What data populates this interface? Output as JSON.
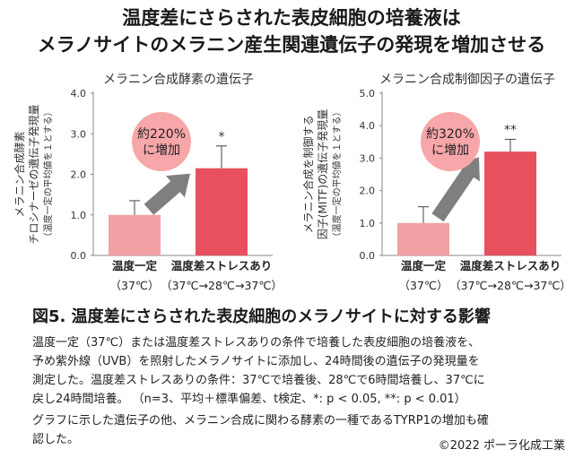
{
  "header": {
    "title_line1": "温度差にさらされた表皮細胞の培養液は",
    "title_line2": "メラノサイトのメラニン産生関連遺伝子の発現を増加させる"
  },
  "chart_data": [
    {
      "type": "bar",
      "title": "メラニン合成酵素の遺伝子",
      "ylabel_lines": [
        "メラニン合成酵素",
        "チロシナーゼの遺伝子発現量",
        "（温度一定の平均値を１とする）"
      ],
      "categories": [
        "温度一定",
        "温度差ストレスあり"
      ],
      "category_sublabels": [
        "（37℃）",
        "（37℃→28℃→37℃）"
      ],
      "values": [
        1.0,
        2.15
      ],
      "errors": [
        0.35,
        0.55
      ],
      "colors": [
        "#f4a1a5",
        "#e8505d"
      ],
      "ylim": [
        0,
        4
      ],
      "yticks": [
        "0.0",
        "1.0",
        "2.0",
        "3.0",
        "4.0"
      ],
      "significance": "*",
      "annotation": [
        "約220%",
        "に増加"
      ]
    },
    {
      "type": "bar",
      "title": "メラニン合成制御因子の遺伝子",
      "ylabel_lines": [
        "メラニン合成を制御する",
        "因子(MITF)の遺伝子発現量",
        "（温度一定の平均値を１とする）"
      ],
      "categories": [
        "温度一定",
        "温度差ストレスあり"
      ],
      "category_sublabels": [
        "（37℃）",
        "（37℃→28℃→37℃）"
      ],
      "values": [
        1.0,
        3.2
      ],
      "errors": [
        0.5,
        0.38
      ],
      "colors": [
        "#f4a1a5",
        "#e8505d"
      ],
      "ylim": [
        0,
        5
      ],
      "yticks": [
        "0.0",
        "1.0",
        "2.0",
        "3.0",
        "4.0",
        "5.0"
      ],
      "significance": "**",
      "annotation": [
        "約320%",
        "に増加"
      ]
    }
  ],
  "caption": "図5. 温度差にさらされた表皮細胞のメラノサイトに対する影響",
  "description": [
    "温度一定（37℃）または温度差ストレスありの条件で培養した表皮細胞の培養液を、",
    "予め紫外線（UVB）を照射したメラノサイトに添加し、24時間後の遺伝子の発現量を",
    "測定した。温度差ストレスありの条件：37℃で培養後、28℃で6時間培養し、37℃に",
    "戻し24時間培養。 （n=3、平均＋標準偏差、t検定、*: p < 0.05, **: p < 0.01）",
    "グラフに示した遺伝子の他、メラニン合成に関わる酵素の一種であるTYRP1の増加も確",
    "認した。"
  ],
  "copyright": "©2022 ポーラ化成工業",
  "colors": {
    "bar_light": "#f4a1a5",
    "bar_dark": "#e8505d",
    "arrow": "#7f7f7f",
    "badge": "#f7a6a9"
  }
}
